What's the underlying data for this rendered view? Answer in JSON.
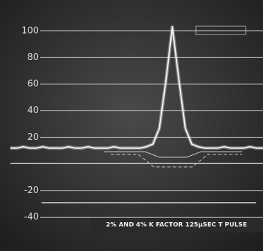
{
  "chart_data": {
    "type": "line",
    "caption": "2% AND 4% K FACTOR 125µSEC T PULSE",
    "values": [
      12,
      12,
      13,
      12,
      12,
      13,
      12,
      12,
      12,
      13,
      12,
      12,
      13,
      12,
      12,
      12,
      13,
      12,
      12,
      12,
      12,
      13,
      15,
      27,
      62,
      103,
      64,
      27,
      15,
      13,
      12,
      12,
      12,
      13,
      12,
      12,
      12,
      13,
      12,
      12
    ],
    "color": "#f2f2f2",
    "ylim": [
      -58,
      118
    ],
    "yticks": [
      -40,
      -20,
      20,
      40,
      60,
      80,
      100
    ],
    "grid": true
  }
}
